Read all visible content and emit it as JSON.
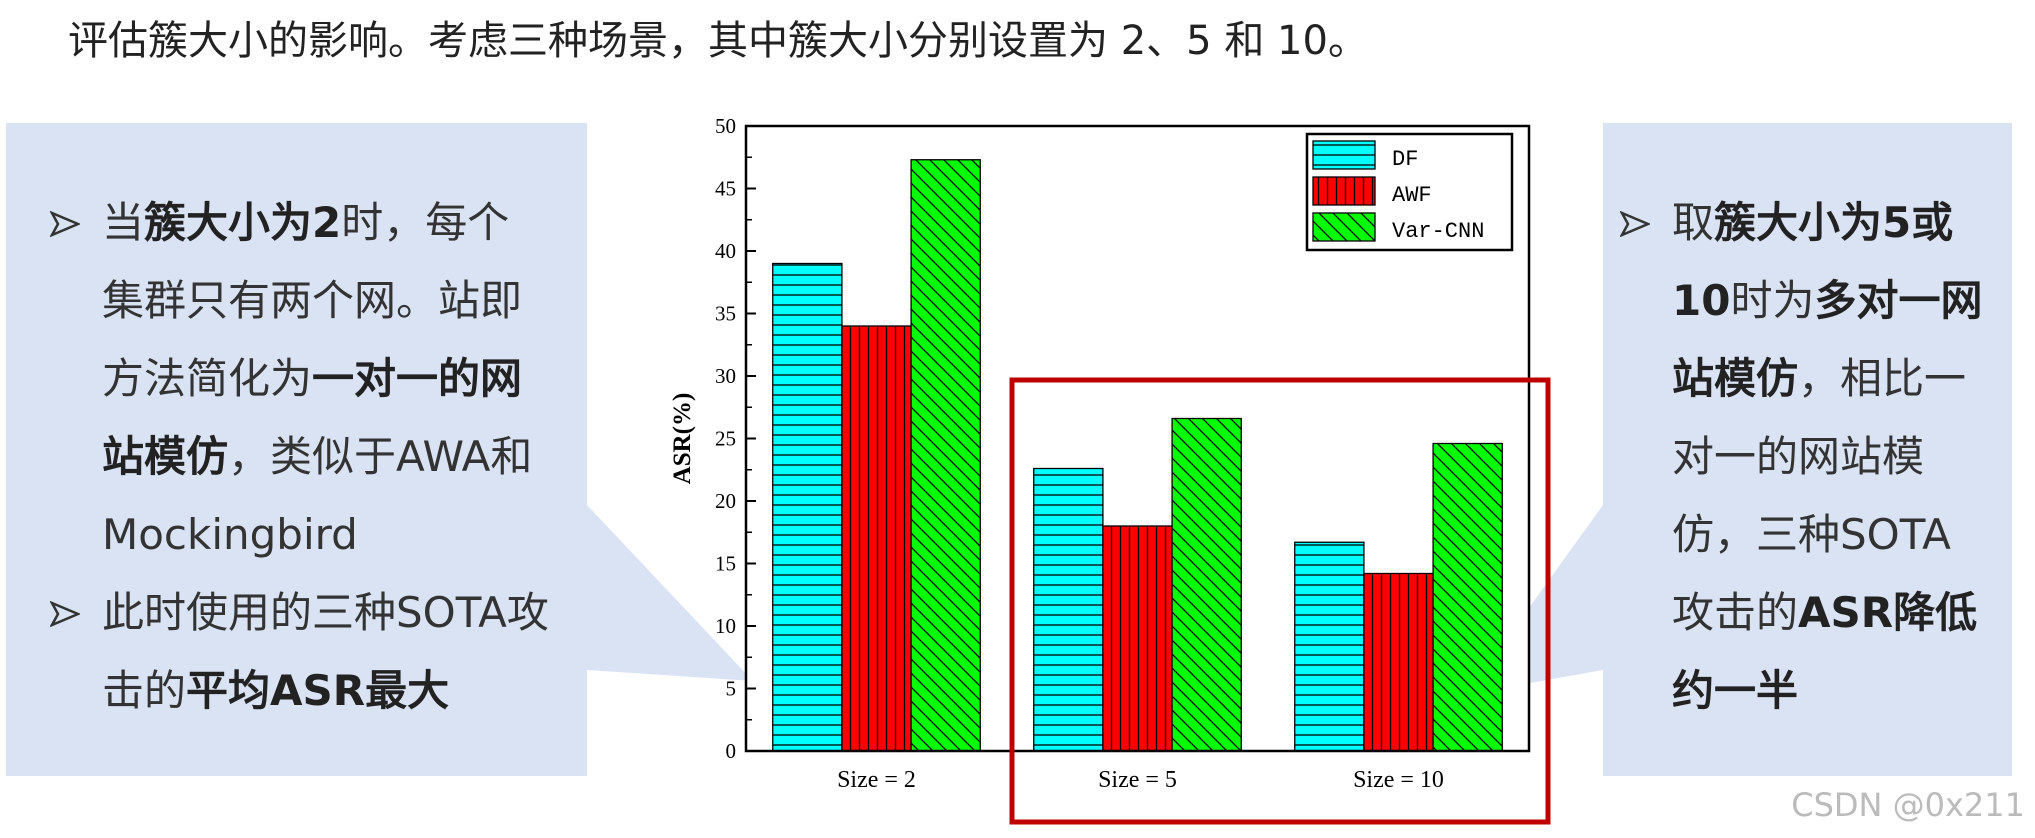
{
  "intro": "评估簇大小的影响。考虑三种场景，其中簇大小分别设置为 2、5 和 10。",
  "left_panel": {
    "bullets": [
      [
        {
          "text": "当"
        },
        {
          "text": "簇大小为2",
          "bold": true
        },
        {
          "text": "时，每个集群只有两个网。站即方法简化为"
        },
        {
          "text": "一对一的网站模仿",
          "bold": true
        },
        {
          "text": "，类似于AWA和 Mockingbird"
        }
      ],
      [
        {
          "text": "此时使用的三种SOTA攻击的"
        },
        {
          "text": "平均ASR最大",
          "bold": true
        }
      ]
    ]
  },
  "right_panel": {
    "bullets": [
      [
        {
          "text": "取"
        },
        {
          "text": "簇大小为5或10",
          "bold": true
        },
        {
          "text": "时为"
        },
        {
          "text": "多对一网站模仿",
          "bold": true
        },
        {
          "text": "，相比一对一的网站模仿，三种SOTA攻击的"
        },
        {
          "text": "ASR降低约一半",
          "bold": true
        }
      ]
    ]
  },
  "chart_data": {
    "type": "bar",
    "ylabel": "ASR(%)",
    "categories": [
      "Size = 2",
      "Size = 5",
      "Size = 10"
    ],
    "series": [
      {
        "name": "DF",
        "color": "#00ffff",
        "hatch": "horizontal",
        "values": [
          39,
          22.6,
          16.7
        ]
      },
      {
        "name": "AWF",
        "color": "#ff0000",
        "hatch": "vertical",
        "values": [
          34,
          18,
          14.2
        ]
      },
      {
        "name": "Var-CNN",
        "color": "#00ff00",
        "hatch": "diagonal",
        "values": [
          47.3,
          26.6,
          24.6
        ]
      }
    ],
    "ylim": [
      0,
      50
    ],
    "yticks": [
      0,
      5,
      10,
      15,
      20,
      25,
      30,
      35,
      40,
      45,
      50
    ],
    "legend": "upper right"
  },
  "watermark": "CSDN @0x211"
}
